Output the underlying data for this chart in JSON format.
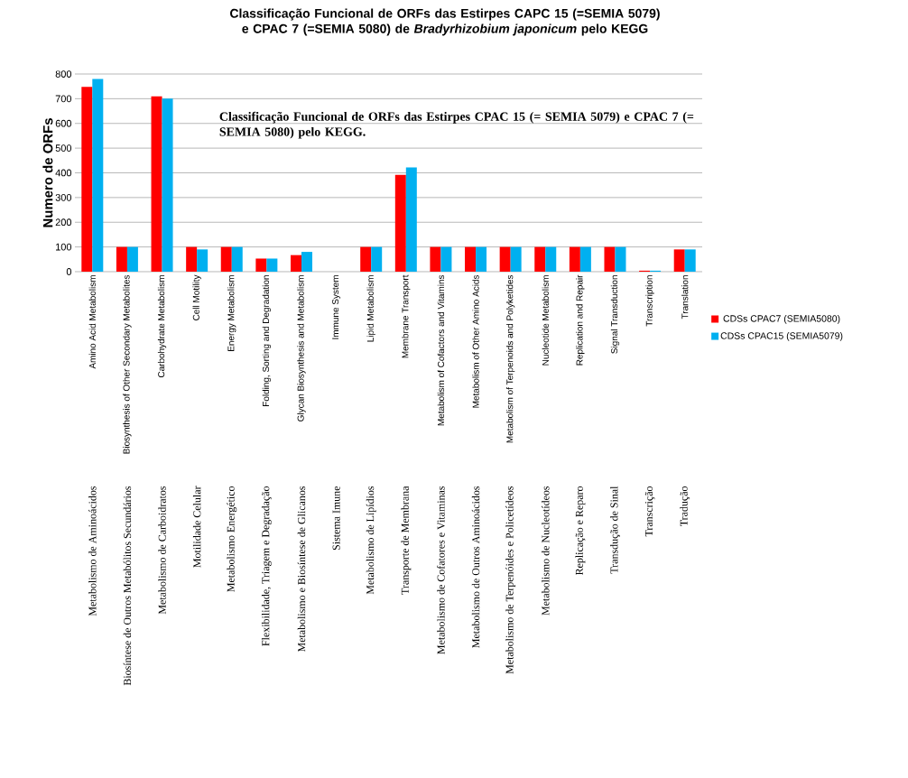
{
  "chart_data": {
    "type": "bar",
    "title": "Classificação Funcional de ORFs das Estirpes CAPC 15 (=SEMIA 5079) e CPAC 7 (=SEMIA 5080) de *Bradyrhizobium japonicum* pelo KEGG",
    "ylabel": "Numero de ORFs",
    "categories": [
      "Amino Acid Metabolism",
      "Biosynthesis of Other Secondary Metabolites",
      "Carbohydrate Metabolism",
      "Cell Motility",
      "Energy Metabolism",
      "Folding, Sorting and Degradation",
      "Glycan Biosynthesis and Metabolism",
      "Immune System",
      "Lipid Metabolism",
      "Membrane Transport",
      "Metabolism of Cofactors and Vitamins",
      "Metabolism of Other Amino Acids",
      "Metabolism of Terpenoids and Polyketides",
      "Nucleotide Metabolism",
      "Replication and Repair",
      "Signal Transduction",
      "Transcription",
      "Translation"
    ],
    "series": [
      {
        "name": "CDSs CPAC7 (SEMIA5080)",
        "color": "#ff0000",
        "values": [
          748,
          100,
          710,
          100,
          100,
          53,
          67,
          0,
          100,
          392,
          100,
          100,
          100,
          100,
          100,
          100,
          4,
          90
        ]
      },
      {
        "name": "CDSs CPAC15 (SEMIA5079)",
        "color": "#00b0f0",
        "values": [
          780,
          100,
          700,
          90,
          100,
          53,
          80,
          0,
          100,
          422,
          100,
          100,
          100,
          100,
          100,
          100,
          4,
          90
        ]
      }
    ],
    "ylim": [
      0,
      800
    ],
    "yticks": [
      0,
      100,
      200,
      300,
      400,
      500,
      600,
      700,
      800
    ],
    "grid": "y",
    "legend": "right",
    "annotations": [
      "Classificação Funcional de ORFs das Estirpes CPAC 15 (= SEMIA 5079) e CPAC 7 (= SEMIA 5080) pelo KEGG.",
      "Metabolismo de Aminoácidos",
      "Biosíntese de Outros Metabólitos Secundários",
      "Metabolismo de Carboidratos",
      "Motilidade Celular",
      "Metabolismo Energético",
      "Flexibilidade, Triagem e Degradação",
      "Metabolismo e Biosíntese de Glicanos",
      "Sistema Imune",
      "Metabolismo de Lipídios",
      "Transporte de Membrana",
      "Metabolismo de Cofatores e Vitaminas",
      "Metabolismo de Outros  Aminoácidos",
      "Metabolismo de Terpenóides e Policetídeos",
      "Metabolismo de Nucleotídeos",
      "Replicação e Reparo",
      "Transdução de Sinal",
      "Transcrição",
      "Tradução"
    ]
  }
}
